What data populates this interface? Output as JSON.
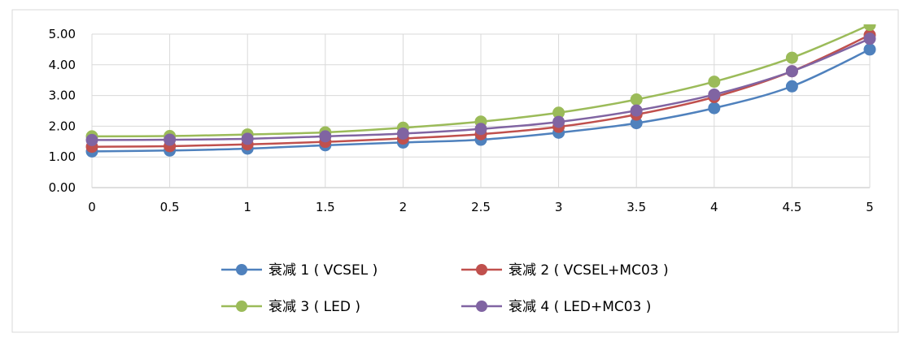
{
  "chart_data": {
    "type": "line",
    "title": "",
    "xlabel": "",
    "ylabel": "",
    "x": [
      0,
      0.5,
      1,
      1.5,
      2,
      2.5,
      3,
      3.5,
      4,
      4.5,
      5
    ],
    "x_tick_labels": [
      "0",
      "0.5",
      "1",
      "1.5",
      "2",
      "2.5",
      "3",
      "3.5",
      "4",
      "4.5",
      "5"
    ],
    "ylim": [
      0,
      5
    ],
    "y_ticks": [
      0,
      1,
      2,
      3,
      4,
      5
    ],
    "y_tick_labels": [
      "0.00",
      "1.00",
      "2.00",
      "3.00",
      "4.00",
      "5.00"
    ],
    "grid": "vertical and horizontal",
    "legend_position": "bottom",
    "series": [
      {
        "name": "衰减 1 ( VCSEL )",
        "color": "#4F81BD",
        "values": [
          1.18,
          1.21,
          1.27,
          1.38,
          1.47,
          1.56,
          1.79,
          2.1,
          2.59,
          3.3,
          4.5
        ]
      },
      {
        "name": "衰减 2 ( VCSEL+MC03 )",
        "color": "#C0504D",
        "values": [
          1.33,
          1.35,
          1.41,
          1.49,
          1.6,
          1.74,
          1.98,
          2.38,
          2.95,
          3.79,
          4.97
        ]
      },
      {
        "name": "衰减 3 ( LED )",
        "color": "#9BBB59",
        "values": [
          1.67,
          1.68,
          1.73,
          1.8,
          1.95,
          2.15,
          2.44,
          2.87,
          3.45,
          4.23,
          5.3
        ]
      },
      {
        "name": "衰减 4 ( LED+MC03 )",
        "color": "#8064A2",
        "values": [
          1.55,
          1.56,
          1.59,
          1.67,
          1.76,
          1.91,
          2.14,
          2.51,
          3.03,
          3.79,
          4.85
        ]
      }
    ]
  }
}
